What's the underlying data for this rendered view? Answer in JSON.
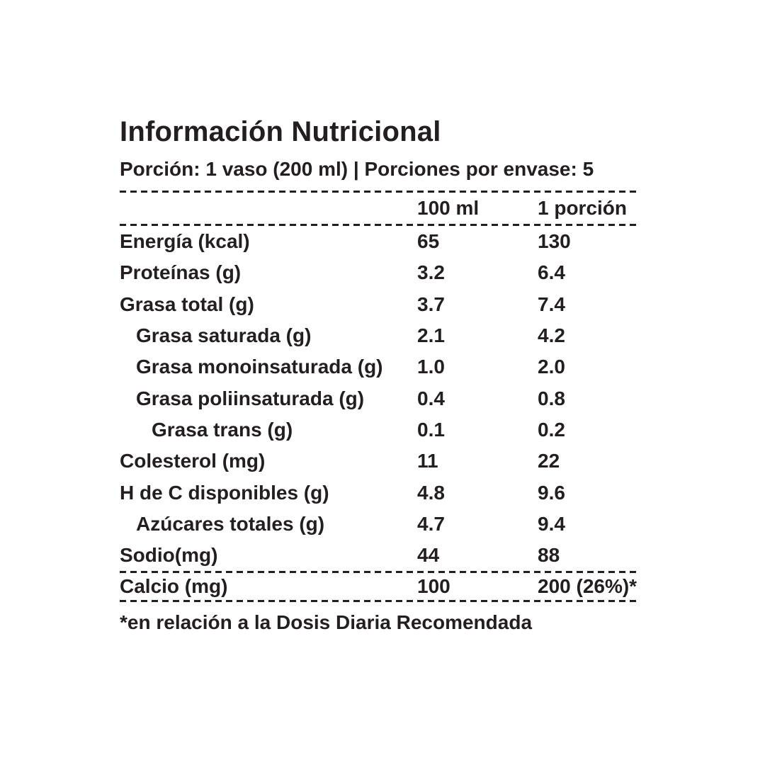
{
  "colors": {
    "text": "#231f20",
    "background": "#ffffff"
  },
  "header": {
    "title": "Información Nutricional",
    "serving_info": "Porción: 1 vaso (200 ml) | Porciones por envase: 5"
  },
  "table": {
    "columns": [
      "100 ml",
      "1 porción"
    ],
    "rows": [
      {
        "label": "Energía (kcal)",
        "per_100ml": "65",
        "per_portion": "130"
      },
      {
        "label": "Proteínas (g)",
        "per_100ml": "3.2",
        "per_portion": "6.4"
      },
      {
        "label": "Grasa total (g)",
        "per_100ml": "3.7",
        "per_portion": "7.4"
      },
      {
        "label": "Grasa saturada (g)",
        "per_100ml": "2.1",
        "per_portion": "4.2"
      },
      {
        "label": "Grasa monoinsaturada (g)",
        "per_100ml": "1.0",
        "per_portion": "2.0"
      },
      {
        "label": "Grasa poliinsaturada (g)",
        "per_100ml": "0.4",
        "per_portion": "0.8"
      },
      {
        "label": "Grasa trans (g)",
        "per_100ml": "0.1",
        "per_portion": "0.2"
      },
      {
        "label": "Colesterol (mg)",
        "per_100ml": "11",
        "per_portion": "22"
      },
      {
        "label": "H de C disponibles (g)",
        "per_100ml": "4.8",
        "per_portion": "9.6"
      },
      {
        "label": "Azúcares totales (g)",
        "per_100ml": "4.7",
        "per_portion": "9.4"
      },
      {
        "label": "Sodio(mg)",
        "per_100ml": "44",
        "per_portion": "88"
      }
    ],
    "calcium_row": {
      "label": "Calcio (mg)",
      "per_100ml": "100",
      "per_portion": "200 (26%)*"
    }
  },
  "footnote": "*en relación a la Dosis Diaria Recomendada"
}
